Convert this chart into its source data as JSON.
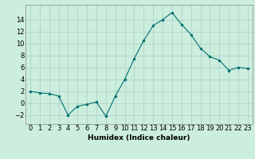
{
  "x": [
    0,
    1,
    2,
    3,
    4,
    5,
    6,
    7,
    8,
    9,
    10,
    11,
    12,
    13,
    14,
    15,
    16,
    17,
    18,
    19,
    20,
    21,
    22,
    23
  ],
  "y": [
    2,
    1.7,
    1.6,
    1.2,
    -2,
    -0.5,
    -0.2,
    0.2,
    -2.2,
    1.2,
    4.0,
    7.5,
    10.5,
    13.0,
    14.0,
    15.2,
    13.2,
    11.5,
    9.2,
    7.8,
    7.2,
    5.5,
    6.0,
    5.8
  ],
  "xlabel": "Humidex (Indice chaleur)",
  "xlim": [
    -0.5,
    23.5
  ],
  "ylim": [
    -3.5,
    16.5
  ],
  "yticks": [
    -2,
    0,
    2,
    4,
    6,
    8,
    10,
    12,
    14
  ],
  "xtick_labels": [
    "0",
    "1",
    "2",
    "3",
    "4",
    "5",
    "6",
    "7",
    "8",
    "9",
    "10",
    "11",
    "12",
    "13",
    "14",
    "15",
    "16",
    "17",
    "18",
    "19",
    "20",
    "21",
    "22",
    "23"
  ],
  "line_color": "#007070",
  "marker_color": "#007070",
  "bg_color": "#cceedd",
  "grid_color": "#aacccc",
  "xlabel_fontsize": 6.5,
  "tick_fontsize": 6
}
